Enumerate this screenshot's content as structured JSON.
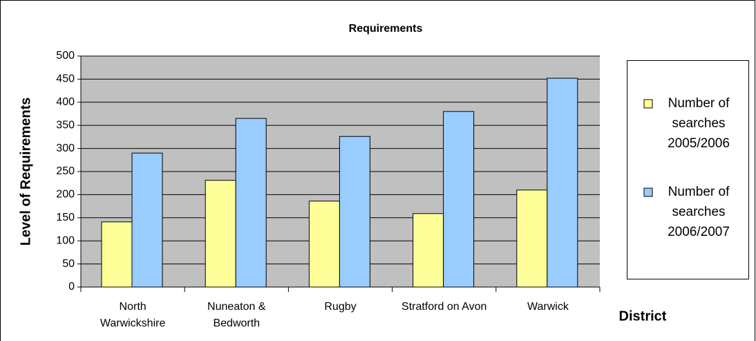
{
  "chart_data": {
    "type": "bar",
    "title": "Requirements",
    "x_label": "District",
    "y_label": "Level of Requirements",
    "categories": [
      "North Warwickshire",
      "Nuneaton & Bedworth",
      "Rugby",
      "Stratford on Avon",
      "Warwick"
    ],
    "series": [
      {
        "name": "Number of searches 2005/2006",
        "color": "#ffff99",
        "values": [
          141,
          231,
          186,
          159,
          210
        ]
      },
      {
        "name": "Number of searches 2006/2007",
        "color": "#99ccff",
        "values": [
          290,
          365,
          326,
          380,
          452
        ]
      }
    ],
    "ylim": [
      0,
      500
    ],
    "yticks": [
      0,
      50,
      100,
      150,
      200,
      250,
      300,
      350,
      400,
      450,
      500
    ],
    "grid": true,
    "legend": "right",
    "plot_background": "#c0c0c0"
  }
}
